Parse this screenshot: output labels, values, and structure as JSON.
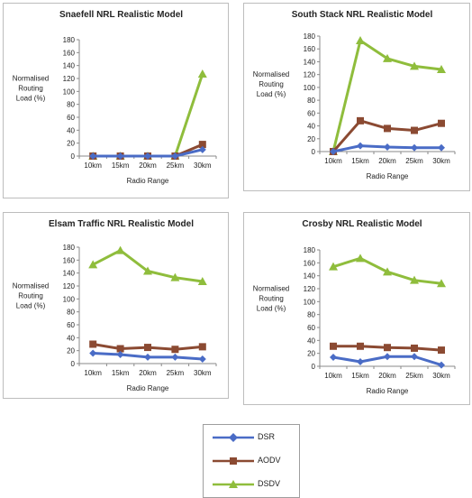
{
  "chart_data": [
    {
      "type": "line",
      "title": "Snaefell NRL Realistic Model",
      "xlabel": "Radio Range",
      "ylabel": [
        "Normalised",
        "Routing",
        "Load (%)"
      ],
      "categories": [
        "10km",
        "15km",
        "20km",
        "25km",
        "30km"
      ],
      "ylim": [
        0,
        180
      ],
      "yticks": [
        0,
        20,
        40,
        60,
        80,
        100,
        120,
        140,
        160,
        180
      ],
      "grid": false,
      "series": [
        {
          "name": "DSR",
          "values": [
            0,
            0,
            0,
            0,
            10
          ]
        },
        {
          "name": "AODV",
          "values": [
            0,
            0,
            0,
            0,
            18
          ]
        },
        {
          "name": "DSDV",
          "values": [
            0,
            0,
            0,
            0,
            127
          ]
        }
      ]
    },
    {
      "type": "line",
      "title": "South Stack NRL Realistic Model",
      "xlabel": "Radio Range",
      "ylabel": [
        "Normalised",
        "Routing",
        "Load (%)"
      ],
      "categories": [
        "10km",
        "15km",
        "20km",
        "25km",
        "30km"
      ],
      "ylim": [
        0,
        180
      ],
      "yticks": [
        0,
        20,
        40,
        60,
        80,
        100,
        120,
        140,
        160,
        180
      ],
      "grid": false,
      "series": [
        {
          "name": "DSR",
          "values": [
            0,
            9,
            7,
            6,
            6
          ]
        },
        {
          "name": "AODV",
          "values": [
            0,
            48,
            36,
            33,
            44
          ]
        },
        {
          "name": "DSDV",
          "values": [
            0,
            173,
            145,
            133,
            128
          ]
        }
      ]
    },
    {
      "type": "line",
      "title": "Elsam Traffic NRL Realistic Model",
      "xlabel": "Radio Range",
      "ylabel": [
        "Normalised",
        "Routing",
        "Load (%)"
      ],
      "categories": [
        "10km",
        "15km",
        "20km",
        "25km",
        "30km"
      ],
      "ylim": [
        0,
        180
      ],
      "yticks": [
        0,
        20,
        40,
        60,
        80,
        100,
        120,
        140,
        160,
        180
      ],
      "grid": false,
      "series": [
        {
          "name": "DSR",
          "values": [
            16,
            14,
            10,
            10,
            7
          ]
        },
        {
          "name": "AODV",
          "values": [
            30,
            23,
            25,
            22,
            26
          ]
        },
        {
          "name": "DSDV",
          "values": [
            153,
            175,
            143,
            133,
            127
          ]
        }
      ]
    },
    {
      "type": "line",
      "title": "Crosby NRL Realistic Model",
      "xlabel": "Radio Range",
      "ylabel": [
        "Normalised",
        "Routing",
        "Load (%)"
      ],
      "categories": [
        "10km",
        "15km",
        "20km",
        "25km",
        "30km"
      ],
      "ylim": [
        0,
        180
      ],
      "yticks": [
        0,
        20,
        40,
        60,
        80,
        100,
        120,
        140,
        160,
        180
      ],
      "grid": false,
      "series": [
        {
          "name": "DSR",
          "values": [
            14,
            7,
            15,
            15,
            2
          ]
        },
        {
          "name": "AODV",
          "values": [
            31,
            31,
            29,
            28,
            25
          ]
        },
        {
          "name": "DSDV",
          "values": [
            154,
            167,
            146,
            133,
            128
          ]
        }
      ]
    }
  ],
  "legend": {
    "items": [
      {
        "name": "DSR",
        "color": "#4a6cc6",
        "marker": "diamond"
      },
      {
        "name": "AODV",
        "color": "#8b4a32",
        "marker": "square"
      },
      {
        "name": "DSDV",
        "color": "#8fbd3c",
        "marker": "triangle"
      }
    ]
  }
}
